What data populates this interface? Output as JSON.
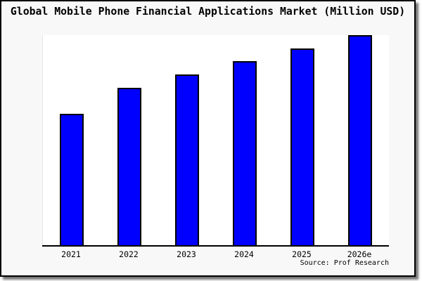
{
  "chart_data": {
    "type": "bar",
    "title": "Global Mobile Phone Financial Applications Market (Million USD)",
    "categories": [
      "2021",
      "2022",
      "2023",
      "2024",
      "2025",
      "2026e"
    ],
    "values": [
      188,
      225,
      244,
      263,
      281,
      300
    ],
    "value_note": "y-axis has no tick labels or gridlines; values are relative units estimated from bar heights",
    "xlabel": "",
    "ylabel": "",
    "ylim": [
      0,
      300
    ],
    "grid": false,
    "legend": "none",
    "bar_color": "#0000ff",
    "bar_edge_color": "#000000"
  },
  "source": {
    "label": "Source: Prof Research"
  },
  "colors": {
    "card_background": "#f8f8f8",
    "plot_background": "#ffffff",
    "frame_border": "#000000",
    "axis": "#000000",
    "bar": "#0000ff",
    "title_text": "#000000"
  }
}
